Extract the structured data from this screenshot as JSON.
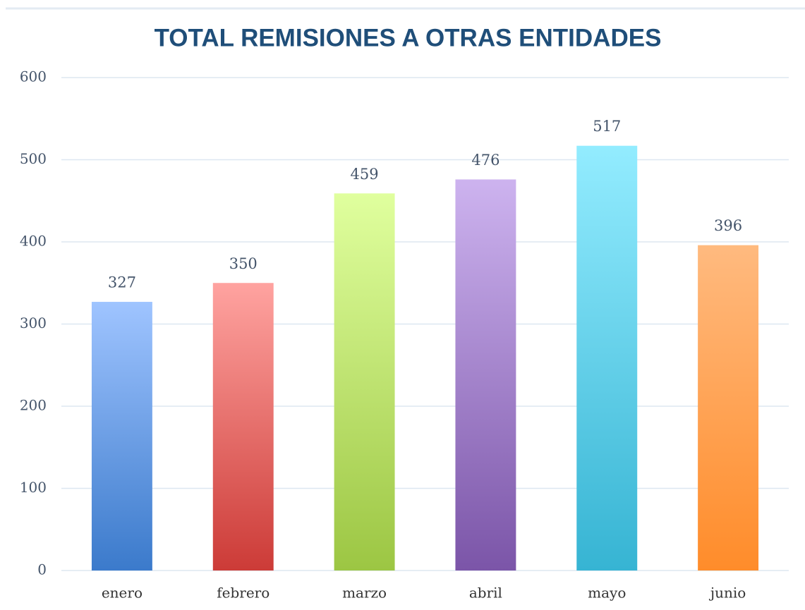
{
  "chart_data": {
    "type": "bar",
    "title": "TOTAL REMISIONES A OTRAS ENTIDADES",
    "categories": [
      "enero",
      "febrero",
      "marzo",
      "abril",
      "mayo",
      "junio"
    ],
    "values": [
      327,
      350,
      459,
      476,
      517,
      396
    ],
    "colors": [
      [
        "#9fc4ff",
        "#3b7acb"
      ],
      [
        "#ffa3a0",
        "#cc3b37"
      ],
      [
        "#e0ff9e",
        "#9cc643"
      ],
      [
        "#cdb3ef",
        "#7b55a8"
      ],
      [
        "#93ecff",
        "#36b4d3"
      ],
      [
        "#ffba7f",
        "#ff8c2a"
      ]
    ],
    "ylim": [
      0,
      600
    ],
    "yticks": [
      0,
      100,
      200,
      300,
      400,
      500,
      600
    ],
    "grid": true
  }
}
